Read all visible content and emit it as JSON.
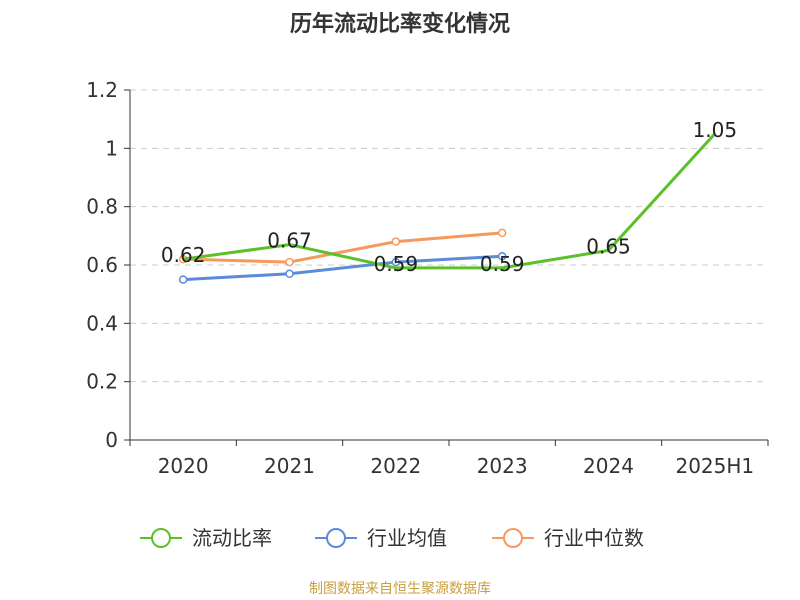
{
  "chart_data": {
    "type": "line",
    "title": "历年流动比率变化情况",
    "categories": [
      "2020",
      "2021",
      "2022",
      "2023",
      "2024",
      "2025H1"
    ],
    "ylim": [
      0,
      1.2
    ],
    "yticks": [
      "0",
      "0.2",
      "0.4",
      "0.6",
      "0.8",
      "1",
      "1.2"
    ],
    "grid": true,
    "legend_position": "bottom",
    "series": [
      {
        "name": "流动比率",
        "color": "#5cc02a",
        "values": [
          0.62,
          0.67,
          0.59,
          0.59,
          0.65,
          1.05
        ],
        "labels": [
          "0.62",
          "0.67",
          "0.59",
          "0.59",
          "0.65",
          "1.05"
        ]
      },
      {
        "name": "行业均值",
        "color": "#5b8bd9",
        "values": [
          0.55,
          0.57,
          0.61,
          0.63,
          null,
          null
        ]
      },
      {
        "name": "行业中位数",
        "color": "#f59a5c",
        "values": [
          0.62,
          0.61,
          0.68,
          0.71,
          null,
          null
        ]
      }
    ]
  },
  "source": "制图数据来自恒生聚源数据库"
}
